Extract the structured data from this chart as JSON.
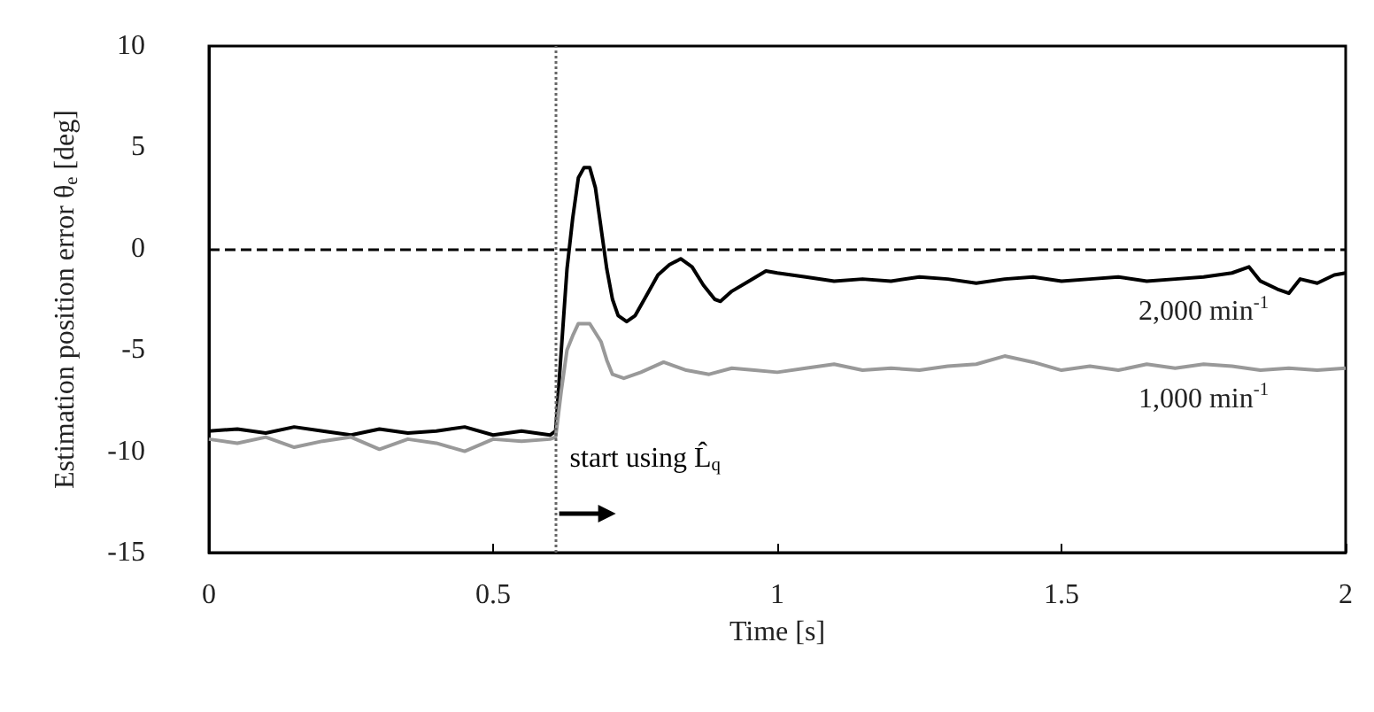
{
  "chart_data": {
    "type": "line",
    "xlabel": "Time [s]",
    "ylabel": "Estimation position error θ$_{e}$ [deg]",
    "xlim": [
      0,
      2
    ],
    "xticks": [
      0,
      0.5,
      1,
      1.5,
      2
    ],
    "ylim": [
      -15,
      10
    ],
    "yticks": [
      -15,
      -10,
      -5,
      0,
      5,
      10
    ],
    "grid": false,
    "legend": false,
    "marker": "none",
    "line_style": "solid",
    "series": [
      {
        "name": "2,000 min$^{-1}$",
        "color": "#000000",
        "x": [
          0,
          0.05,
          0.1,
          0.15,
          0.2,
          0.25,
          0.3,
          0.35,
          0.4,
          0.45,
          0.5,
          0.55,
          0.6,
          0.61,
          0.62,
          0.63,
          0.64,
          0.65,
          0.66,
          0.67,
          0.68,
          0.69,
          0.7,
          0.71,
          0.72,
          0.735,
          0.75,
          0.77,
          0.79,
          0.81,
          0.83,
          0.85,
          0.87,
          0.89,
          0.9,
          0.92,
          0.95,
          0.98,
          1.0,
          1.05,
          1.1,
          1.15,
          1.2,
          1.25,
          1.3,
          1.35,
          1.4,
          1.45,
          1.5,
          1.55,
          1.6,
          1.65,
          1.7,
          1.75,
          1.8,
          1.83,
          1.85,
          1.88,
          1.9,
          1.92,
          1.95,
          1.98,
          2.0
        ],
        "values": [
          -9.0,
          -8.9,
          -9.1,
          -8.8,
          -9.0,
          -9.2,
          -8.9,
          -9.1,
          -9.0,
          -8.8,
          -9.2,
          -9.0,
          -9.2,
          -9.0,
          -5,
          -1,
          1.5,
          3.5,
          4.0,
          4.0,
          3.0,
          1,
          -1,
          -2.5,
          -3.3,
          -3.6,
          -3.3,
          -2.3,
          -1.3,
          -0.8,
          -0.5,
          -0.9,
          -1.8,
          -2.5,
          -2.6,
          -2.1,
          -1.6,
          -1.1,
          -1.2,
          -1.4,
          -1.6,
          -1.5,
          -1.6,
          -1.4,
          -1.5,
          -1.7,
          -1.5,
          -1.4,
          -1.6,
          -1.5,
          -1.4,
          -1.6,
          -1.5,
          -1.4,
          -1.2,
          -0.9,
          -1.6,
          -2.0,
          -2.2,
          -1.5,
          -1.7,
          -1.3,
          -1.2
        ]
      },
      {
        "name": "1,000 min$^{-1}$",
        "color": "#999999",
        "x": [
          0,
          0.05,
          0.1,
          0.15,
          0.2,
          0.25,
          0.3,
          0.35,
          0.4,
          0.45,
          0.5,
          0.55,
          0.6,
          0.61,
          0.62,
          0.63,
          0.64,
          0.65,
          0.67,
          0.69,
          0.7,
          0.71,
          0.73,
          0.76,
          0.8,
          0.84,
          0.88,
          0.92,
          0.96,
          1.0,
          1.05,
          1.1,
          1.15,
          1.2,
          1.25,
          1.3,
          1.35,
          1.4,
          1.45,
          1.5,
          1.55,
          1.6,
          1.65,
          1.7,
          1.75,
          1.8,
          1.85,
          1.9,
          1.95,
          2.0
        ],
        "values": [
          -9.4,
          -9.6,
          -9.3,
          -9.8,
          -9.5,
          -9.3,
          -9.9,
          -9.4,
          -9.6,
          -10.0,
          -9.4,
          -9.5,
          -9.4,
          -9.3,
          -7,
          -5,
          -4.3,
          -3.7,
          -3.7,
          -4.6,
          -5.5,
          -6.2,
          -6.4,
          -6.1,
          -5.6,
          -6.0,
          -6.2,
          -5.9,
          -6.0,
          -6.1,
          -5.9,
          -5.7,
          -6.0,
          -5.9,
          -6.0,
          -5.8,
          -5.7,
          -5.3,
          -5.6,
          -6.0,
          -5.8,
          -6.0,
          -5.7,
          -5.9,
          -5.7,
          -5.8,
          -6.0,
          -5.9,
          -6.0,
          -5.9
        ]
      }
    ],
    "ref_lines": [
      {
        "axis": "x",
        "value": 0.61,
        "label": "start using L̂$_{q}$",
        "line_style": "dotted",
        "color": "#666666"
      },
      {
        "axis": "y",
        "value": 0,
        "label": null,
        "line_style": "dashed",
        "color": "#000000"
      }
    ]
  }
}
